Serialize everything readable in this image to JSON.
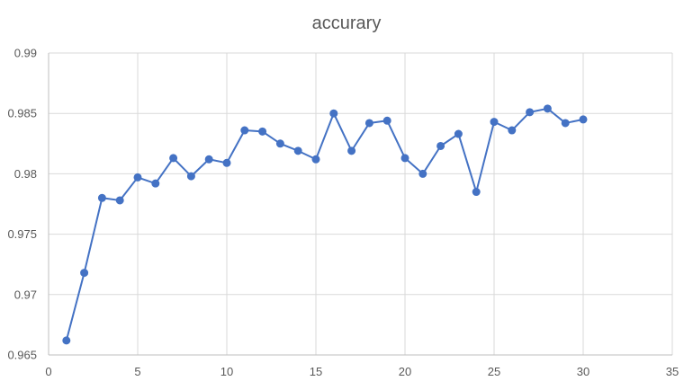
{
  "chart_data": {
    "type": "line",
    "title": "accurary",
    "xlabel": "",
    "ylabel": "",
    "xlim": [
      0,
      35
    ],
    "ylim": [
      0.965,
      0.99
    ],
    "x_ticks": [
      0,
      5,
      10,
      15,
      20,
      25,
      30,
      35
    ],
    "y_ticks": [
      0.965,
      0.97,
      0.975,
      0.98,
      0.985,
      0.99
    ],
    "x_tick_labels": [
      "0",
      "5",
      "10",
      "15",
      "20",
      "25",
      "30",
      "35"
    ],
    "y_tick_labels": [
      "0.965",
      "0.97",
      "0.975",
      "0.98",
      "0.985",
      "0.99"
    ],
    "grid": true,
    "legend": "none",
    "series": [
      {
        "color": "#4472c4",
        "marker": "circle",
        "x": [
          1,
          2,
          3,
          4,
          5,
          6,
          7,
          8,
          9,
          10,
          11,
          12,
          13,
          14,
          15,
          16,
          17,
          18,
          19,
          20,
          21,
          22,
          23,
          24,
          25,
          26,
          27,
          28,
          29,
          30
        ],
        "y": [
          0.9662,
          0.9718,
          0.978,
          0.9778,
          0.9797,
          0.9792,
          0.9813,
          0.9798,
          0.9812,
          0.9809,
          0.9836,
          0.9835,
          0.9825,
          0.9819,
          0.9812,
          0.985,
          0.9819,
          0.9842,
          0.9844,
          0.9813,
          0.98,
          0.9823,
          0.9833,
          0.9785,
          0.9843,
          0.9836,
          0.9851,
          0.9854,
          0.9842,
          0.9845
        ]
      }
    ]
  }
}
